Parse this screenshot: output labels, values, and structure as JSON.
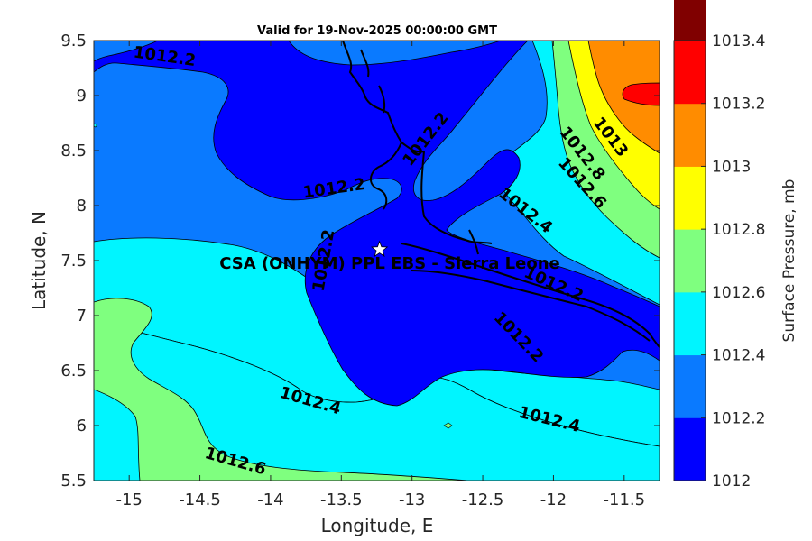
{
  "title": "Valid for 19-Nov-2025 00:00:00 GMT",
  "xlabel": "Longitude, E",
  "ylabel": "Latitude, N",
  "colorbar_label": "Surface Pressure, mb",
  "site_label": "CSA (ONHYM) PPL EBS  - Sierra Leone",
  "colorbar": {
    "levels": [
      "1012",
      "1012.2",
      "1012.4",
      "1012.6",
      "1012.8",
      "1013",
      "1013.2",
      "1013.4"
    ],
    "colors": [
      "#0000ff",
      "#0a7aff",
      "#00f5ff",
      "#7fff7f",
      "#ffff00",
      "#ff8c00",
      "#ff0000",
      "#800000"
    ]
  },
  "chart_data": {
    "type": "contour",
    "variable": "Surface Pressure",
    "units": "mb",
    "x_ticks": [
      "-15",
      "-14.5",
      "-14",
      "-13.5",
      "-13",
      "-12.5",
      "-12",
      "-11.5"
    ],
    "y_ticks": [
      "5.5",
      "6",
      "6.5",
      "7",
      "7.5",
      "8",
      "8.5",
      "9",
      "9.5"
    ],
    "xlim": [
      -15.25,
      -11.25
    ],
    "ylim": [
      5.5,
      9.5
    ],
    "site": {
      "lon": -13.23,
      "lat": 7.6
    },
    "contour_labels": [
      {
        "text": "1012.2",
        "lon": -14.75,
        "lat": 9.35,
        "angle": 8
      },
      {
        "text": "1012.2",
        "lon": -12.9,
        "lat": 8.6,
        "angle": -52
      },
      {
        "text": "1012.2",
        "lon": -13.55,
        "lat": 8.15,
        "angle": -8
      },
      {
        "text": "1012.2",
        "lon": -13.62,
        "lat": 7.5,
        "angle": -80
      },
      {
        "text": "1012.2",
        "lon": -12.0,
        "lat": 7.28,
        "angle": 24
      },
      {
        "text": "1012.2",
        "lon": -12.25,
        "lat": 6.8,
        "angle": 46
      },
      {
        "text": "1012.4",
        "lon": -12.2,
        "lat": 7.95,
        "angle": 38
      },
      {
        "text": "1012.4",
        "lon": -13.72,
        "lat": 6.22,
        "angle": 16
      },
      {
        "text": "1012.4",
        "lon": -12.03,
        "lat": 6.05,
        "angle": 14
      },
      {
        "text": "1012.6",
        "lon": -11.8,
        "lat": 8.2,
        "angle": 48
      },
      {
        "text": "1012.6",
        "lon": -14.25,
        "lat": 5.67,
        "angle": 16
      },
      {
        "text": "1012.8",
        "lon": -11.8,
        "lat": 8.47,
        "angle": 52
      },
      {
        "text": "1013",
        "lon": -11.6,
        "lat": 8.62,
        "angle": 52
      }
    ]
  }
}
